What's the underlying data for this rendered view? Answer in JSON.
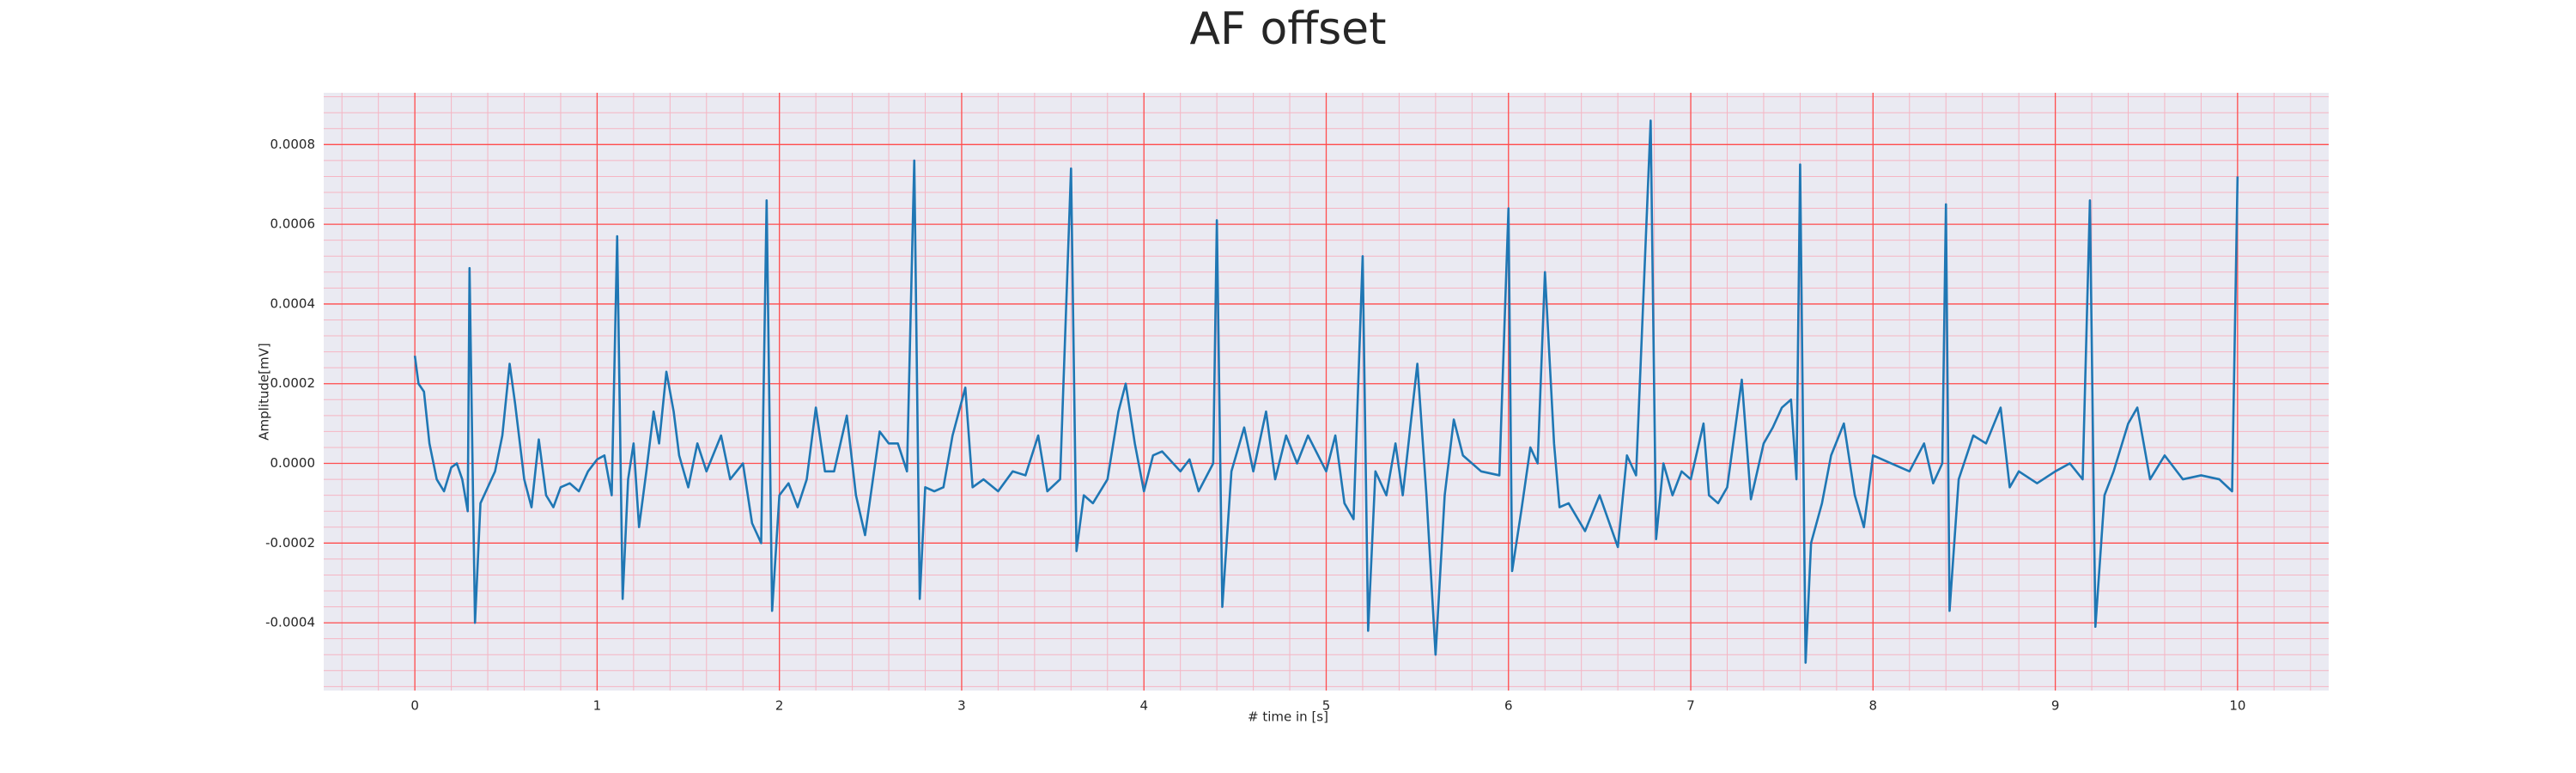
{
  "chart_data": {
    "type": "line",
    "title": "AF offset",
    "xlabel": "# time in [s]",
    "ylabel": "Amplitude[mV]",
    "color": "#1f77b4",
    "grid": true,
    "minor_grid": true,
    "xlim": [
      -0.5,
      10.5
    ],
    "ylim": [
      -0.00057,
      0.00093
    ],
    "xticks": [
      0,
      1,
      2,
      3,
      4,
      5,
      6,
      7,
      8,
      9,
      10
    ],
    "yticks": [
      -0.0004,
      -0.0002,
      {
        "value": 0,
        "label": "0.0000"
      },
      0.0002,
      0.0004,
      0.0006,
      0.0008
    ],
    "x": [
      0,
      0.02,
      0.05,
      0.08,
      0.12,
      0.16,
      0.2,
      0.23,
      0.26,
      0.29,
      0.3,
      0.33,
      0.36,
      0.4,
      0.44,
      0.48,
      0.52,
      0.55,
      0.6,
      0.64,
      0.68,
      0.72,
      0.76,
      0.8,
      0.85,
      0.9,
      0.95,
      1.0,
      1.04,
      1.08,
      1.11,
      1.14,
      1.17,
      1.2,
      1.23,
      1.27,
      1.31,
      1.34,
      1.38,
      1.42,
      1.45,
      1.5,
      1.55,
      1.6,
      1.68,
      1.73,
      1.8,
      1.85,
      1.9,
      1.93,
      1.96,
      2.0,
      2.05,
      2.1,
      2.15,
      2.2,
      2.25,
      2.3,
      2.37,
      2.42,
      2.47,
      2.55,
      2.6,
      2.65,
      2.7,
      2.74,
      2.77,
      2.8,
      2.85,
      2.9,
      2.95,
      3.02,
      3.06,
      3.12,
      3.2,
      3.28,
      3.35,
      3.42,
      3.47,
      3.54,
      3.6,
      3.63,
      3.67,
      3.72,
      3.8,
      3.86,
      3.9,
      3.95,
      4.0,
      4.05,
      4.1,
      4.2,
      4.25,
      4.3,
      4.38,
      4.4,
      4.43,
      4.48,
      4.55,
      4.6,
      4.67,
      4.72,
      4.78,
      4.84,
      4.9,
      5.0,
      5.05,
      5.1,
      5.15,
      5.2,
      5.23,
      5.27,
      5.33,
      5.38,
      5.42,
      5.5,
      5.55,
      5.6,
      5.65,
      5.7,
      5.75,
      5.85,
      5.95,
      6.0,
      6.02,
      6.07,
      6.12,
      6.16,
      6.2,
      6.25,
      6.28,
      6.33,
      6.42,
      6.5,
      6.6,
      6.65,
      6.7,
      6.78,
      6.81,
      6.85,
      6.9,
      6.95,
      7.0,
      7.07,
      7.1,
      7.15,
      7.2,
      7.28,
      7.33,
      7.4,
      7.45,
      7.5,
      7.55,
      7.58,
      7.6,
      7.63,
      7.66,
      7.72,
      7.77,
      7.84,
      7.9,
      7.95,
      8.0,
      8.1,
      8.2,
      8.28,
      8.33,
      8.38,
      8.4,
      8.42,
      8.47,
      8.55,
      8.62,
      8.7,
      8.75,
      8.8,
      8.9,
      9.0,
      9.08,
      9.15,
      9.19,
      9.22,
      9.27,
      9.32,
      9.4,
      9.45,
      9.52,
      9.6,
      9.7,
      9.8,
      9.9,
      9.97,
      10.0
    ],
    "values": [
      0.00027,
      0.0002,
      0.00018,
      5e-05,
      -4e-05,
      -7e-05,
      -1e-05,
      0,
      -4e-05,
      -0.00012,
      0.00049,
      -0.0004,
      -0.0001,
      -6e-05,
      -2e-05,
      7e-05,
      0.00025,
      0.00015,
      -4e-05,
      -0.00011,
      6e-05,
      -8e-05,
      -0.00011,
      -6e-05,
      -5e-05,
      -7e-05,
      -2e-05,
      1e-05,
      2e-05,
      -8e-05,
      0.00057,
      -0.00034,
      -4e-05,
      5e-05,
      -0.00016,
      -2e-05,
      0.00013,
      5e-05,
      0.00023,
      0.00013,
      2e-05,
      -6e-05,
      5e-05,
      -2e-05,
      7e-05,
      -4e-05,
      0,
      -0.00015,
      -0.0002,
      0.00066,
      -0.00037,
      -8e-05,
      -5e-05,
      -0.00011,
      -4e-05,
      0.00014,
      -2e-05,
      -2e-05,
      0.00012,
      -8e-05,
      -0.00018,
      8e-05,
      5e-05,
      5e-05,
      -2e-05,
      0.00076,
      -0.00034,
      -6e-05,
      -7e-05,
      -6e-05,
      7e-05,
      0.00019,
      -6e-05,
      -4e-05,
      -7e-05,
      -2e-05,
      -3e-05,
      7e-05,
      -7e-05,
      -4e-05,
      0.00074,
      -0.00022,
      -8e-05,
      -0.0001,
      -4e-05,
      0.00013,
      0.0002,
      5e-05,
      -7e-05,
      2e-05,
      3e-05,
      -2e-05,
      1e-05,
      -7e-05,
      0,
      0.00061,
      -0.00036,
      -2e-05,
      9e-05,
      -2e-05,
      0.00013,
      -4e-05,
      7e-05,
      0,
      7e-05,
      -2e-05,
      7e-05,
      -0.0001,
      -0.00014,
      0.00052,
      -0.00042,
      -2e-05,
      -8e-05,
      5e-05,
      -8e-05,
      0.00025,
      -8e-05,
      -0.00048,
      -8e-05,
      0.00011,
      2e-05,
      -2e-05,
      -3e-05,
      0.00064,
      -0.00027,
      -0.00012,
      4e-05,
      0,
      0.00048,
      5e-05,
      -0.00011,
      -0.0001,
      -0.00017,
      -8e-05,
      -0.00021,
      2e-05,
      -3e-05,
      0.00086,
      -0.00019,
      0,
      -8e-05,
      -2e-05,
      -4e-05,
      0.0001,
      -8e-05,
      -0.0001,
      -6e-05,
      0.00021,
      -9e-05,
      5e-05,
      9e-05,
      0.00014,
      0.00016,
      -4e-05,
      0.00075,
      -0.0005,
      -0.0002,
      -0.0001,
      2e-05,
      0.0001,
      -8e-05,
      -0.00016,
      2e-05,
      0,
      -2e-05,
      5e-05,
      -5e-05,
      0,
      0.00065,
      -0.00037,
      -4e-05,
      7e-05,
      5e-05,
      0.00014,
      -6e-05,
      -2e-05,
      -5e-05,
      -2e-05,
      0,
      -4e-05,
      0.00066,
      -0.00041,
      -8e-05,
      -2e-05,
      0.0001,
      0.00014,
      -4e-05,
      2e-05,
      -4e-05,
      -3e-05,
      -4e-05,
      -7e-05,
      0.00072
    ]
  }
}
